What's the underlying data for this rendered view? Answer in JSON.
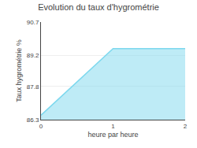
{
  "chart_data": {
    "type": "area",
    "title": "Evolution du taux d'hygrométrie",
    "x_label": "heure par heure",
    "y_label": "Taux hygrométrie %",
    "x": [
      0,
      1,
      2
    ],
    "values": [
      86.5,
      89.5,
      89.5
    ],
    "color": "#7dd8ee",
    "xlim": [
      0,
      2
    ],
    "xticks": [
      0,
      1,
      2
    ],
    "ylim": [
      86.3,
      90.7
    ],
    "yticks": [
      86.3,
      87.8,
      89.2,
      90.7
    ],
    "grid": true
  }
}
